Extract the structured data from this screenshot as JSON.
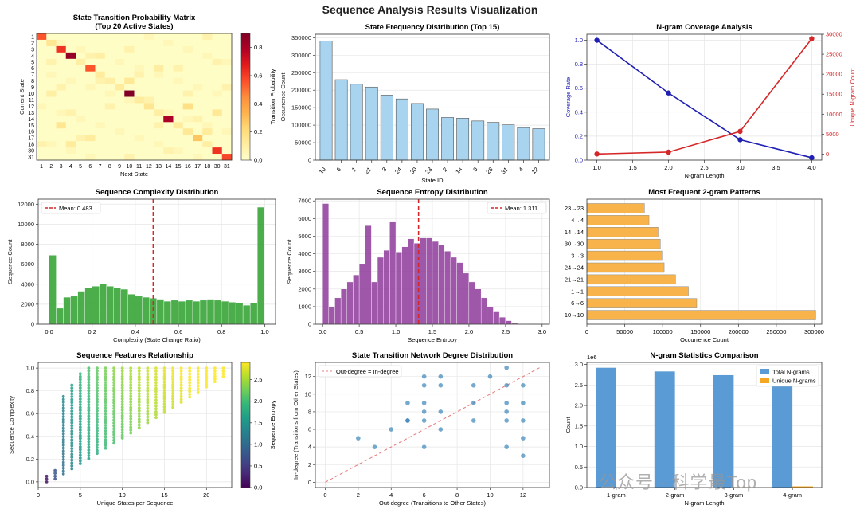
{
  "figure": {
    "title": "Sequence Analysis Results Visualization"
  },
  "watermark": "公众号 · 科学最Top",
  "chart_data": [
    {
      "id": "heatmap",
      "type": "heatmap",
      "title": "State Transition Probability Matrix",
      "subtitle": "(Top 20 Active States)",
      "xlabel": "Next State",
      "ylabel": "Current State",
      "row_labels": [
        "1",
        "2",
        "3",
        "4",
        "5",
        "6",
        "7",
        "8",
        "9",
        "10",
        "11",
        "12",
        "13",
        "14",
        "15",
        "16",
        "17",
        "18",
        "30",
        "31"
      ],
      "col_labels": [
        "1",
        "2",
        "3",
        "4",
        "5",
        "6",
        "7",
        "8",
        "9",
        "10",
        "11",
        "12",
        "13",
        "14",
        "15",
        "16",
        "17",
        "18",
        "30",
        "31"
      ],
      "colorbar_label": "Transition Probability",
      "colorbar_ticks": [
        "0.0",
        "0.2",
        "0.4",
        "0.6",
        "0.8"
      ],
      "vmax": 0.9,
      "highlights": [
        [
          0,
          0,
          0.55
        ],
        [
          2,
          2,
          0.62
        ],
        [
          3,
          3,
          0.85
        ],
        [
          5,
          5,
          0.55
        ],
        [
          9,
          9,
          0.9
        ],
        [
          13,
          13,
          0.8
        ],
        [
          18,
          18,
          0.62
        ],
        [
          19,
          19,
          0.58
        ],
        [
          1,
          1,
          0.15
        ],
        [
          4,
          4,
          0.1
        ],
        [
          6,
          6,
          0.12
        ],
        [
          7,
          7,
          0.1
        ],
        [
          8,
          8,
          0.12
        ],
        [
          10,
          10,
          0.12
        ],
        [
          11,
          11,
          0.15
        ],
        [
          12,
          12,
          0.1
        ],
        [
          14,
          14,
          0.12
        ],
        [
          15,
          15,
          0.14
        ],
        [
          16,
          16,
          0.28
        ],
        [
          17,
          17,
          0.1
        ],
        [
          16,
          5,
          0.12
        ],
        [
          11,
          15,
          0.18
        ],
        [
          14,
          2,
          0.15
        ],
        [
          7,
          9,
          0.14
        ],
        [
          3,
          6,
          0.1
        ],
        [
          12,
          18,
          0.14
        ],
        [
          15,
          17,
          0.12
        ],
        [
          5,
          12,
          0.11
        ],
        [
          9,
          1,
          0.1
        ],
        [
          17,
          3,
          0.12
        ]
      ]
    },
    {
      "id": "freq",
      "type": "bar",
      "title": "State Frequency Distribution (Top 15)",
      "xlabel": "State ID",
      "ylabel": "Occurrence Count",
      "categories": [
        "10",
        "6",
        "1",
        "21",
        "3",
        "24",
        "30",
        "23",
        "2",
        "14",
        "0",
        "26",
        "31",
        "4",
        "12"
      ],
      "values": [
        341000,
        230000,
        217000,
        209000,
        186000,
        175000,
        162000,
        146000,
        122000,
        120000,
        112000,
        108000,
        101000,
        93000,
        90000
      ],
      "ylim": [
        0,
        360000
      ],
      "yticks": [
        "0",
        "50000",
        "100000",
        "150000",
        "200000",
        "250000",
        "300000",
        "350000"
      ]
    },
    {
      "id": "ngram_cov",
      "type": "line",
      "title": "N-gram Coverage Analysis",
      "xlabel": "N-gram Length",
      "x": [
        1.0,
        2.0,
        3.0,
        4.0
      ],
      "xticks": [
        "1.0",
        "1.5",
        "2.0",
        "2.5",
        "3.0",
        "3.5",
        "4.0"
      ],
      "series": [
        {
          "name": "Coverage Rate",
          "axis": "left",
          "color": "#1f1fb4",
          "values": [
            1.0,
            0.56,
            0.17,
            0.02
          ],
          "ylim": [
            0,
            1.05
          ],
          "yticks": [
            "0.0",
            "0.2",
            "0.4",
            "0.6",
            "0.8",
            "1.0"
          ]
        },
        {
          "name": "Unique N-gram Count",
          "axis": "right",
          "color": "#d62728",
          "values": [
            31,
            500,
            5700,
            28900
          ],
          "ylim": [
            -1500,
            30000
          ],
          "yticks": [
            "0",
            "5000",
            "10000",
            "15000",
            "20000",
            "25000",
            "30000"
          ]
        }
      ]
    },
    {
      "id": "complexity",
      "type": "histogram",
      "title": "Sequence Complexity Distribution",
      "xlabel": "Complexity (State Change Ratio)",
      "ylabel": "Sequence Count",
      "bin_start": 0.0,
      "bin_width": 0.0333,
      "values": [
        6900,
        1600,
        2700,
        2800,
        3300,
        3600,
        3800,
        4000,
        3800,
        3600,
        3500,
        3000,
        2800,
        2700,
        2600,
        2500,
        2300,
        2400,
        2300,
        2400,
        2300,
        2400,
        2500,
        2400,
        2300,
        2200,
        2100,
        1900,
        2100,
        11700
      ],
      "xlim": [
        -0.05,
        1.05
      ],
      "ylim": [
        0,
        12500
      ],
      "xticks": [
        "0.0",
        "0.2",
        "0.4",
        "0.6",
        "0.8",
        "1.0"
      ],
      "yticks": [
        "0",
        "2000",
        "4000",
        "6000",
        "8000",
        "10000",
        "12000"
      ],
      "mean": 0.483,
      "mean_label": "Mean: 0.483",
      "color": "#2ca02c"
    },
    {
      "id": "entropy",
      "type": "histogram",
      "title": "Sequence Entropy Distribution",
      "xlabel": "Sequence Entropy",
      "ylabel": "Sequence Count",
      "bin_start": 0.0,
      "bin_width": 0.0833,
      "values": [
        6850,
        1000,
        1500,
        2000,
        2400,
        2800,
        3400,
        5600,
        2400,
        3800,
        4200,
        5800,
        4100,
        4400,
        4850,
        4600,
        4900,
        4900,
        4700,
        4500,
        4150,
        3800,
        3500,
        2900,
        2400,
        2000,
        1500,
        1000,
        700,
        400,
        200,
        50,
        20,
        10,
        5
      ],
      "xlim": [
        -0.1,
        3.1
      ],
      "ylim": [
        0,
        7100
      ],
      "xticks": [
        "0.0",
        "0.5",
        "1.0",
        "1.5",
        "2.0",
        "2.5",
        "3.0"
      ],
      "yticks": [
        "0",
        "1000",
        "2000",
        "3000",
        "4000",
        "5000",
        "6000",
        "7000"
      ],
      "mean": 1.311,
      "mean_label": "Mean: 1.311",
      "color": "#8e3a9a"
    },
    {
      "id": "bigrams",
      "type": "bar-horizontal",
      "title": "Most Frequent 2-gram Patterns",
      "xlabel": "Occurrence Count",
      "categories": [
        "10→10",
        "6→6",
        "1→1",
        "21→21",
        "24→24",
        "3→3",
        "30→30",
        "14→14",
        "4→4",
        "23→23"
      ],
      "values": [
        302000,
        145000,
        134000,
        117000,
        102000,
        99000,
        97000,
        94000,
        82000,
        76000
      ],
      "xlim": [
        0,
        310000
      ],
      "xticks": [
        "0",
        "50000",
        "100000",
        "150000",
        "200000",
        "250000",
        "300000"
      ]
    },
    {
      "id": "features",
      "type": "scatter",
      "title": "Sequence Features Relationship",
      "xlabel": "Unique States per Sequence",
      "ylabel": "Sequence Complexity",
      "colorbar_label": "Sequence Entropy",
      "colorbar_ticks": [
        "0.0",
        "0.5",
        "1.0",
        "1.5",
        "2.0",
        "2.5"
      ],
      "xlim": [
        0,
        23
      ],
      "ylim": [
        -0.05,
        1.05
      ],
      "xticks": [
        "0",
        "5",
        "10",
        "15",
        "20"
      ],
      "yticks": [
        "0.0",
        "0.2",
        "0.4",
        "0.6",
        "0.8",
        "1.0"
      ],
      "x_range": [
        1,
        22
      ],
      "entropy_max": 2.9
    },
    {
      "id": "degree",
      "type": "scatter",
      "title": "State Transition Network Degree Distribution",
      "xlabel": "Out-degree (Transitions to Other States)",
      "ylabel": "In-degree (Transitions from Other States)",
      "legend": "Out-degree = In-degree",
      "points": [
        [
          2,
          5
        ],
        [
          3,
          4
        ],
        [
          4,
          6
        ],
        [
          5,
          7
        ],
        [
          5,
          9
        ],
        [
          5,
          7
        ],
        [
          6,
          4
        ],
        [
          6,
          8
        ],
        [
          6,
          12
        ],
        [
          6,
          11
        ],
        [
          6,
          9
        ],
        [
          6,
          7
        ],
        [
          7,
          8
        ],
        [
          7,
          12
        ],
        [
          7,
          11
        ],
        [
          7,
          6
        ],
        [
          9,
          9
        ],
        [
          9,
          11
        ],
        [
          9,
          7
        ],
        [
          10,
          12
        ],
        [
          11,
          13
        ],
        [
          11,
          9
        ],
        [
          11,
          8
        ],
        [
          11,
          7
        ],
        [
          11,
          4
        ],
        [
          11,
          11
        ],
        [
          12,
          11
        ],
        [
          12,
          9
        ],
        [
          12,
          5
        ],
        [
          12,
          3
        ],
        [
          12,
          7
        ]
      ],
      "xlim": [
        -0.6,
        13.6
      ],
      "ylim": [
        -0.6,
        13.6
      ],
      "xticks": [
        "0",
        "2",
        "4",
        "6",
        "8",
        "10",
        "12"
      ],
      "yticks": [
        "0",
        "2",
        "4",
        "6",
        "8",
        "10",
        "12"
      ]
    },
    {
      "id": "ngram_stats",
      "type": "bar",
      "title": "N-gram Statistics Comparison",
      "xlabel": "N-gram Length",
      "ylabel": "Count",
      "scale_label": "1e6",
      "categories": [
        "1-gram",
        "2-gram",
        "3-gram",
        "4-gram"
      ],
      "series": [
        {
          "name": "Total N-grams",
          "color": "#5b9bd5",
          "values": [
            2.92,
            2.83,
            2.74,
            2.65
          ]
        },
        {
          "name": "Unique N-grams",
          "color": "#f5a623",
          "values": [
            3e-05,
            0.0005,
            0.0057,
            0.029
          ]
        }
      ],
      "ylim": [
        0,
        3.05
      ],
      "yticks": [
        "0.0",
        "0.5",
        "1.0",
        "1.5",
        "2.0",
        "2.5",
        "3.0"
      ]
    }
  ]
}
